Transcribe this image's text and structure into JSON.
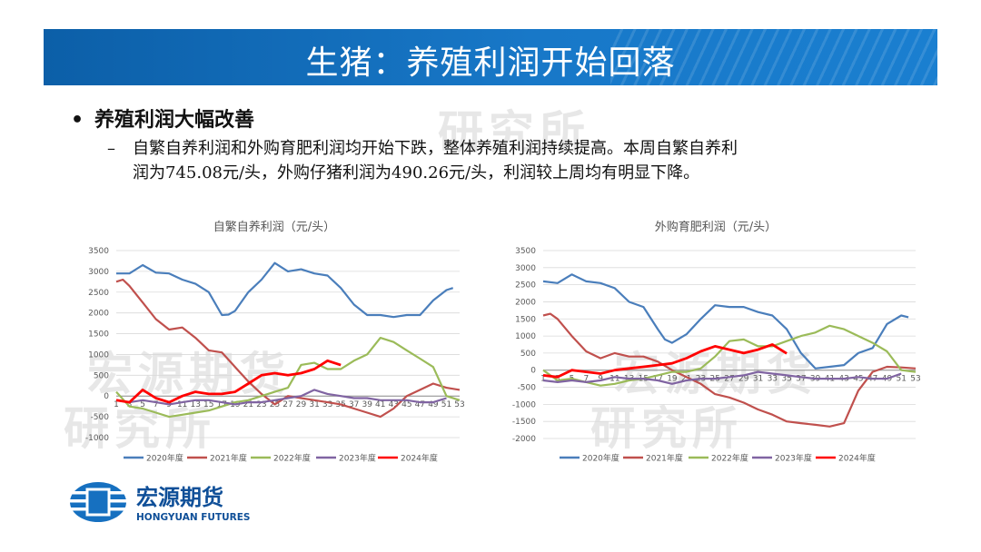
{
  "header": {
    "title": "生猪：养殖利润开始回落"
  },
  "bullet": {
    "title": "养殖利润大幅改善"
  },
  "subbullet": {
    "line1": "自繁自养利润和外购育肥利润均开始下跌，整体养殖利润持续提高。本周自繁自养利",
    "line2": "润为745.08元/头，外购仔猪利润为490.26元/头，利润较上周均有明显下降。"
  },
  "watermark": {
    "text1": "宏源期货",
    "text2": "研究所"
  },
  "logo": {
    "cn": "宏源期货",
    "en": "HONGYUAN FUTURES"
  },
  "colors": {
    "2020年度": "#4a7ebb",
    "2021年度": "#c0504d",
    "2022年度": "#9bbb59",
    "2023年度": "#8064a2",
    "2024年度": "#ff0000",
    "banner": "#1878c8"
  },
  "chart_data": [
    {
      "type": "line",
      "title": "自繁自养利润（元/头）",
      "x_ticks": [
        "1",
        "3",
        "5",
        "7",
        "9",
        "11",
        "13",
        "15",
        "17",
        "19",
        "21",
        "23",
        "25",
        "27",
        "29",
        "31",
        "33",
        "35",
        "37",
        "39",
        "41",
        "43",
        "45",
        "47",
        "49",
        "51",
        "53"
      ],
      "ylim": [
        -1000,
        3500
      ],
      "y_ticks": [
        "3500",
        "3000",
        "2500",
        "2000",
        "1500",
        "1000",
        "500",
        "0",
        "-500",
        "-1000"
      ],
      "legend": "bottom",
      "series": [
        {
          "name": "2020年度",
          "x": [
            1,
            3,
            5,
            7,
            9,
            11,
            13,
            15,
            17,
            18,
            19,
            21,
            23,
            25,
            27,
            29,
            31,
            33,
            35,
            37,
            39,
            41,
            43,
            45,
            47,
            49,
            51,
            52
          ],
          "y": [
            2950,
            2950,
            3150,
            2970,
            2950,
            2800,
            2700,
            2500,
            1950,
            1960,
            2050,
            2500,
            2800,
            3200,
            3000,
            3050,
            2950,
            2900,
            2600,
            2200,
            1950,
            1950,
            1900,
            1950,
            1950,
            2300,
            2550,
            2600
          ]
        },
        {
          "name": "2021年度",
          "x": [
            1,
            2,
            3,
            5,
            7,
            9,
            11,
            13,
            15,
            17,
            19,
            21,
            23,
            25,
            27,
            29,
            31,
            33,
            35,
            37,
            39,
            41,
            43,
            45,
            47,
            49,
            51,
            53
          ],
          "y": [
            2750,
            2800,
            2650,
            2250,
            1850,
            1600,
            1650,
            1400,
            1100,
            1050,
            700,
            350,
            50,
            -200,
            0,
            -50,
            -100,
            -150,
            -200,
            -300,
            -400,
            -500,
            -300,
            0,
            150,
            300,
            200,
            150
          ]
        },
        {
          "name": "2022年度",
          "x": [
            1,
            3,
            5,
            7,
            9,
            11,
            13,
            15,
            17,
            19,
            21,
            23,
            25,
            27,
            29,
            31,
            33,
            35,
            37,
            39,
            41,
            43,
            45,
            47,
            49,
            51,
            53
          ],
          "y": [
            100,
            -250,
            -300,
            -400,
            -500,
            -450,
            -400,
            -350,
            -250,
            -150,
            -100,
            0,
            100,
            200,
            750,
            800,
            650,
            650,
            850,
            1000,
            1400,
            1300,
            1100,
            900,
            700,
            0,
            -100
          ]
        },
        {
          "name": "2023年度",
          "x": [
            1,
            3,
            5,
            7,
            9,
            11,
            13,
            15,
            17,
            19,
            21,
            23,
            25,
            27,
            29,
            31,
            33,
            35,
            37,
            39,
            41,
            43,
            45,
            47,
            49,
            51
          ],
          "y": [
            -100,
            -150,
            -100,
            -150,
            -200,
            -150,
            -100,
            -100,
            -150,
            -200,
            -150,
            -150,
            -100,
            -50,
            0,
            150,
            50,
            0,
            -50,
            -50,
            -100,
            -100,
            -100,
            -150,
            -150,
            -50
          ]
        },
        {
          "name": "2024年度",
          "x": [
            1,
            3,
            5,
            7,
            9,
            11,
            13,
            15,
            17,
            19,
            21,
            23,
            25,
            27,
            29,
            31,
            33,
            35
          ],
          "y": [
            -100,
            -150,
            150,
            -50,
            -150,
            0,
            100,
            50,
            50,
            100,
            300,
            500,
            550,
            500,
            550,
            650,
            850,
            745
          ]
        }
      ]
    },
    {
      "type": "line",
      "title": "外购育肥利润（元/头）",
      "x_ticks": [
        "1",
        "3",
        "5",
        "7",
        "9",
        "11",
        "13",
        "15",
        "17",
        "19",
        "21",
        "23",
        "25",
        "27",
        "29",
        "31",
        "33",
        "35",
        "37",
        "39",
        "41",
        "43",
        "45",
        "47",
        "49",
        "51",
        "53"
      ],
      "ylim": [
        -2000,
        3500
      ],
      "y_ticks": [
        "3500",
        "3000",
        "2500",
        "2000",
        "1500",
        "1000",
        "500",
        "0",
        "-500",
        "-1000",
        "-1500",
        "-2000"
      ],
      "legend": "bottom",
      "series": [
        {
          "name": "2020年度",
          "x": [
            1,
            3,
            5,
            7,
            9,
            11,
            13,
            15,
            17,
            18,
            19,
            21,
            23,
            25,
            27,
            29,
            31,
            33,
            35,
            37,
            39,
            41,
            43,
            45,
            47,
            49,
            51,
            52
          ],
          "y": [
            2600,
            2550,
            2800,
            2600,
            2550,
            2400,
            2000,
            1850,
            1200,
            900,
            800,
            1050,
            1500,
            1900,
            1850,
            1850,
            1700,
            1600,
            1200,
            500,
            50,
            100,
            150,
            500,
            650,
            1350,
            1600,
            1550
          ]
        },
        {
          "name": "2021年度",
          "x": [
            1,
            2,
            3,
            5,
            7,
            9,
            11,
            13,
            15,
            17,
            19,
            21,
            23,
            25,
            27,
            29,
            31,
            33,
            35,
            37,
            39,
            41,
            43,
            45,
            47,
            49,
            51,
            53
          ],
          "y": [
            1600,
            1650,
            1500,
            1000,
            550,
            350,
            500,
            400,
            400,
            250,
            0,
            -200,
            -400,
            -700,
            -800,
            -950,
            -1150,
            -1300,
            -1500,
            -1550,
            -1600,
            -1650,
            -1550,
            -600,
            -50,
            100,
            80,
            50
          ]
        },
        {
          "name": "2022年度",
          "x": [
            1,
            3,
            5,
            7,
            9,
            11,
            13,
            15,
            17,
            19,
            21,
            23,
            25,
            27,
            29,
            31,
            33,
            35,
            37,
            39,
            41,
            43,
            45,
            47,
            49,
            51,
            53
          ],
          "y": [
            0,
            -300,
            -250,
            -350,
            -450,
            -400,
            -300,
            -250,
            -150,
            -50,
            -50,
            50,
            400,
            850,
            900,
            700,
            700,
            850,
            1000,
            1100,
            1300,
            1200,
            1000,
            800,
            550,
            0,
            -50
          ]
        },
        {
          "name": "2023年度",
          "x": [
            1,
            3,
            5,
            7,
            9,
            11,
            13,
            15,
            17,
            19,
            21,
            23,
            25,
            27,
            29,
            31,
            33,
            35,
            37,
            39,
            41,
            43,
            45,
            47,
            49,
            51
          ],
          "y": [
            -300,
            -350,
            -300,
            -350,
            -300,
            -200,
            -250,
            -250,
            -300,
            -400,
            -300,
            -250,
            -250,
            -200,
            -150,
            -50,
            -100,
            -150,
            -200,
            -250,
            -250,
            -250,
            -200,
            -250,
            -250,
            -100
          ]
        },
        {
          "name": "2024年度",
          "x": [
            1,
            3,
            5,
            7,
            9,
            11,
            13,
            15,
            17,
            19,
            21,
            23,
            25,
            27,
            29,
            31,
            33,
            35
          ],
          "y": [
            -150,
            -200,
            0,
            -50,
            -100,
            0,
            50,
            100,
            150,
            200,
            350,
            550,
            700,
            600,
            500,
            600,
            750,
            490
          ]
        }
      ]
    }
  ]
}
